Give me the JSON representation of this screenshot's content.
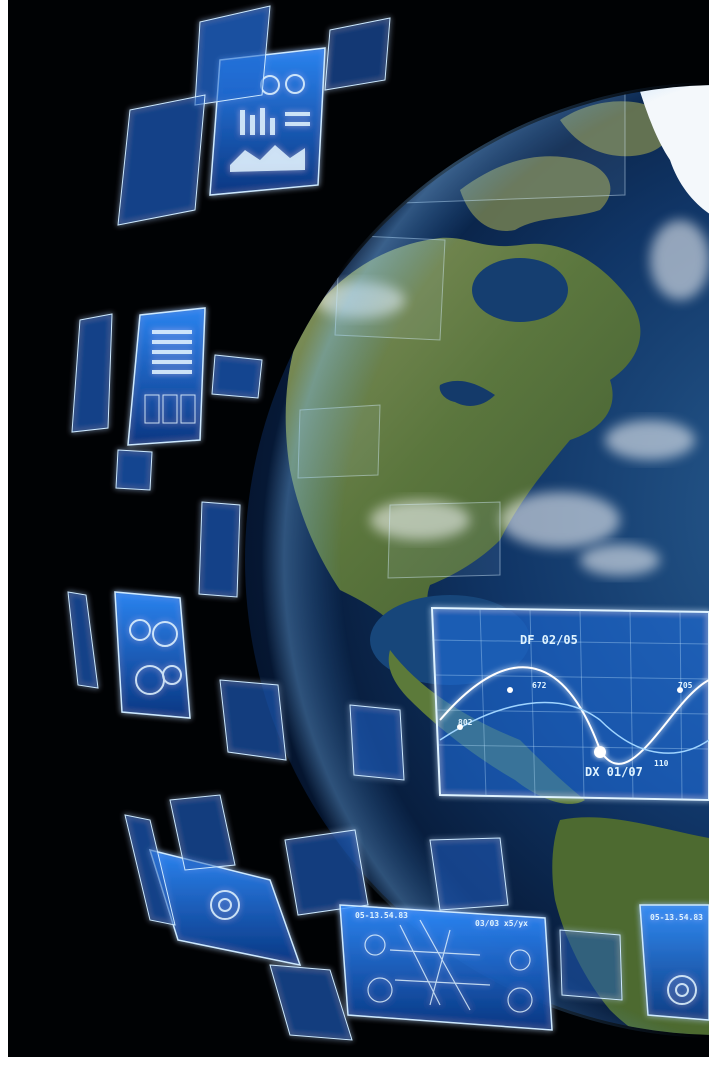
{
  "scene": {
    "colors": {
      "background": "#000204",
      "ocean": "#0d2f5c",
      "land": "#5f7a3c",
      "ice": "#f4f8fb",
      "hud": "#3fa6ff",
      "hud_glow": "#bfe6ff"
    }
  },
  "hud": {
    "label_top": "DF 02/05",
    "label_bottom": "DX 01/07",
    "marker_a": "672",
    "marker_b": "802",
    "marker_c": "705",
    "marker_d": "110"
  },
  "panels": {
    "map_header_left": "05-13.54.83",
    "map_header_right": "03/03 x5/yx",
    "corner_header": "05-13.54.83"
  }
}
